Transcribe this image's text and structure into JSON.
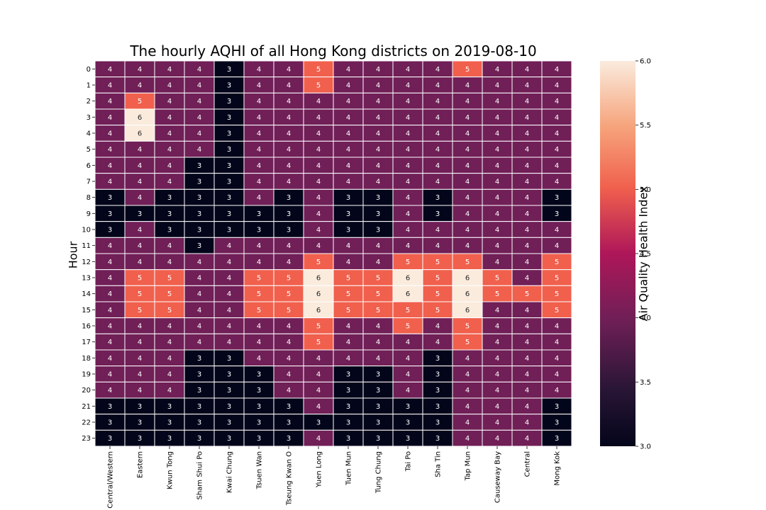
{
  "chart_data": {
    "type": "heatmap",
    "title": "The hourly AQHI of all Hong Kong districts on 2019-08-10",
    "ylabel": "Hour",
    "xlabel": "",
    "colorbar_label": "Air Quality Health Index",
    "colorbar_ticks": [
      "3.0",
      "3.5",
      "4.0",
      "4.5",
      "5.0",
      "5.5",
      "6.0"
    ],
    "vmin": 3,
    "vmax": 6,
    "colormap": "rocket",
    "annotated": true,
    "columns": [
      "Central/Western",
      "Eastern",
      "Kwun Tong",
      "Sham Shui Po",
      "Kwai Chung",
      "Tsuen Wan",
      "Tseung Kwan O",
      "Yuen Long",
      "Tuen Mun",
      "Tung Chung",
      "Tai Po",
      "Sha Tin",
      "Tap Mun",
      "Causeway Bay",
      "Central",
      "Mong Kok"
    ],
    "rows": [
      "0",
      "1",
      "2",
      "3",
      "4",
      "5",
      "6",
      "7",
      "8",
      "9",
      "10",
      "11",
      "12",
      "13",
      "14",
      "15",
      "16",
      "17",
      "18",
      "19",
      "20",
      "21",
      "22",
      "23"
    ],
    "values": [
      [
        4,
        4,
        4,
        4,
        3,
        4,
        4,
        5,
        4,
        4,
        4,
        4,
        5,
        4,
        4,
        4
      ],
      [
        4,
        4,
        4,
        4,
        3,
        4,
        4,
        5,
        4,
        4,
        4,
        4,
        4,
        4,
        4,
        4
      ],
      [
        4,
        5,
        4,
        4,
        3,
        4,
        4,
        4,
        4,
        4,
        4,
        4,
        4,
        4,
        4,
        4
      ],
      [
        4,
        6,
        4,
        4,
        3,
        4,
        4,
        4,
        4,
        4,
        4,
        4,
        4,
        4,
        4,
        4
      ],
      [
        4,
        6,
        4,
        4,
        3,
        4,
        4,
        4,
        4,
        4,
        4,
        4,
        4,
        4,
        4,
        4
      ],
      [
        4,
        4,
        4,
        4,
        3,
        4,
        4,
        4,
        4,
        4,
        4,
        4,
        4,
        4,
        4,
        4
      ],
      [
        4,
        4,
        4,
        3,
        3,
        4,
        4,
        4,
        4,
        4,
        4,
        4,
        4,
        4,
        4,
        4
      ],
      [
        4,
        4,
        4,
        3,
        3,
        4,
        4,
        4,
        4,
        4,
        4,
        4,
        4,
        4,
        4,
        4
      ],
      [
        3,
        4,
        3,
        3,
        3,
        4,
        3,
        4,
        3,
        3,
        4,
        3,
        4,
        4,
        4,
        3
      ],
      [
        3,
        3,
        3,
        3,
        3,
        3,
        3,
        4,
        3,
        3,
        4,
        3,
        4,
        4,
        4,
        3
      ],
      [
        3,
        4,
        3,
        3,
        3,
        3,
        3,
        4,
        3,
        3,
        4,
        4,
        4,
        4,
        4,
        4
      ],
      [
        4,
        4,
        4,
        3,
        4,
        4,
        4,
        4,
        4,
        4,
        4,
        4,
        4,
        4,
        4,
        4
      ],
      [
        4,
        4,
        4,
        4,
        4,
        4,
        4,
        5,
        4,
        4,
        5,
        5,
        5,
        4,
        4,
        5
      ],
      [
        4,
        5,
        5,
        4,
        4,
        5,
        5,
        6,
        5,
        5,
        6,
        5,
        6,
        5,
        4,
        5
      ],
      [
        4,
        5,
        5,
        4,
        4,
        5,
        5,
        6,
        5,
        5,
        6,
        5,
        6,
        5,
        5,
        5
      ],
      [
        4,
        5,
        5,
        4,
        4,
        5,
        5,
        6,
        5,
        5,
        5,
        5,
        6,
        4,
        4,
        5
      ],
      [
        4,
        4,
        4,
        4,
        4,
        4,
        4,
        5,
        4,
        4,
        5,
        4,
        5,
        4,
        4,
        4
      ],
      [
        4,
        4,
        4,
        4,
        4,
        4,
        4,
        5,
        4,
        4,
        4,
        4,
        5,
        4,
        4,
        4
      ],
      [
        4,
        4,
        4,
        3,
        3,
        4,
        4,
        4,
        4,
        4,
        4,
        3,
        4,
        4,
        4,
        4
      ],
      [
        4,
        4,
        4,
        3,
        3,
        3,
        4,
        4,
        3,
        3,
        4,
        3,
        4,
        4,
        4,
        4
      ],
      [
        4,
        4,
        4,
        3,
        3,
        3,
        4,
        4,
        3,
        3,
        4,
        3,
        4,
        4,
        4,
        4
      ],
      [
        3,
        3,
        3,
        3,
        3,
        3,
        3,
        4,
        3,
        3,
        3,
        3,
        4,
        4,
        4,
        3
      ],
      [
        3,
        3,
        3,
        3,
        3,
        3,
        3,
        3,
        3,
        3,
        3,
        3,
        4,
        4,
        4,
        3
      ],
      [
        3,
        3,
        3,
        3,
        3,
        3,
        3,
        4,
        3,
        3,
        3,
        3,
        4,
        4,
        4,
        3
      ]
    ],
    "colors": {
      "3": "#03051a",
      "4": "#701f57",
      "5": "#f0604d",
      "6": "#faebdd"
    }
  }
}
